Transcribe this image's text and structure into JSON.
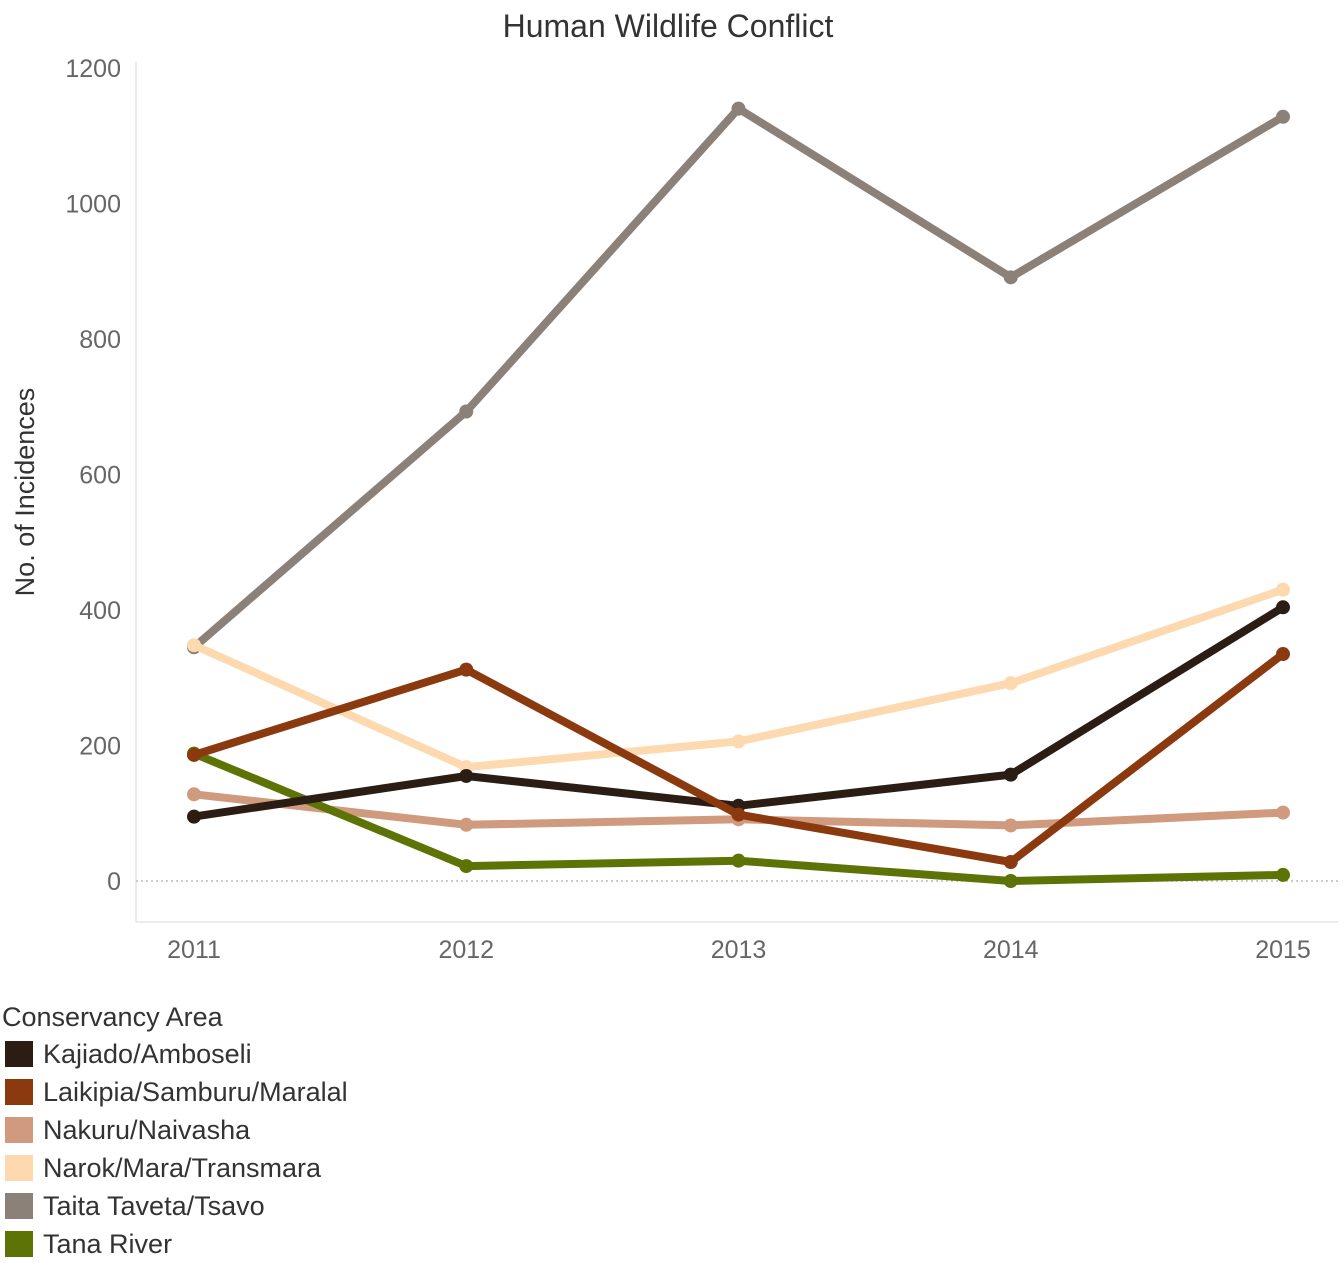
{
  "chart_data": {
    "type": "line",
    "title": "Human Wildlife Conflict",
    "xlabel": "",
    "ylabel": "No. of Incidences",
    "x": [
      "2011",
      "2012",
      "2013",
      "2014",
      "2015"
    ],
    "ylim": [
      -62,
      1215
    ],
    "yticks": [
      0,
      200,
      400,
      600,
      800,
      1000,
      1200
    ],
    "series": [
      {
        "name": "Taita Taveta/Tsavo",
        "color": "#8C8178",
        "values": [
          345,
          693,
          1140,
          891,
          1128
        ]
      },
      {
        "name": "Narok/Mara/Transmara",
        "color": "#FDD9B0",
        "values": [
          348,
          168,
          206,
          292,
          430
        ]
      },
      {
        "name": "Nakuru/Naivasha",
        "color": "#CF9A7E",
        "values": [
          128,
          83,
          91,
          82,
          101
        ]
      },
      {
        "name": "Tana River",
        "color": "#5E7305",
        "values": [
          188,
          22,
          30,
          0,
          9
        ]
      },
      {
        "name": "Kajiado/Amboseli",
        "color": "#2B1D14",
        "values": [
          95,
          155,
          111,
          157,
          404
        ]
      },
      {
        "name": "Laikipia/Samburu/Maralal",
        "color": "#8B3A0F",
        "values": [
          186,
          312,
          98,
          28,
          335
        ]
      }
    ],
    "grid": false,
    "zero_line": true,
    "legend": {
      "title": "Conservancy Area",
      "position": "bottom-left",
      "items": [
        {
          "label": "Kajiado/Amboseli",
          "color": "#2B1D14"
        },
        {
          "label": "Laikipia/Samburu/Maralal",
          "color": "#8B3A0F"
        },
        {
          "label": "Nakuru/Naivasha",
          "color": "#CF9A7E"
        },
        {
          "label": "Narok/Mara/Transmara",
          "color": "#FDD9B0"
        },
        {
          "label": "Taita Taveta/Tsavo",
          "color": "#8C8178"
        },
        {
          "label": "Tana River",
          "color": "#5E7305"
        }
      ]
    }
  }
}
